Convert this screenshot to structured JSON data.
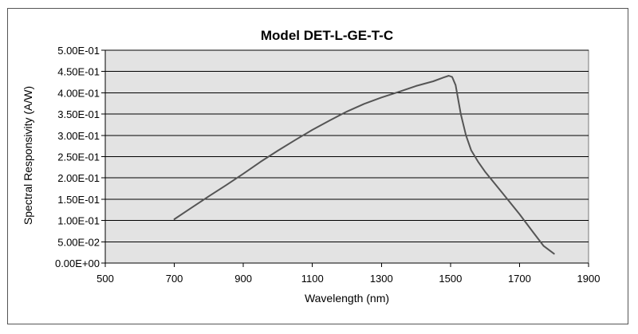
{
  "chart_data": {
    "type": "line",
    "title": "Model DET-L-GE-T-C",
    "xlabel": "Wavelength  (nm)",
    "ylabel": "Spectral Responsivity  (A/W)",
    "xlim": [
      500,
      1900
    ],
    "ylim": [
      0,
      0.5
    ],
    "x_ticks": [
      500,
      700,
      900,
      1100,
      1300,
      1500,
      1700,
      1900
    ],
    "x_tick_labels": [
      "500",
      "700",
      "900",
      "1100",
      "1300",
      "1500",
      "1700",
      "1900"
    ],
    "y_ticks": [
      0,
      0.05,
      0.1,
      0.15,
      0.2,
      0.25,
      0.3,
      0.35,
      0.4,
      0.45,
      0.5
    ],
    "y_tick_labels": [
      "0.00E+00",
      "5.00E-02",
      "1.00E-01",
      "1.50E-01",
      "2.00E-01",
      "2.50E-01",
      "3.00E-01",
      "3.50E-01",
      "4.00E-01",
      "4.50E-01",
      "5.00E-01"
    ],
    "grid": true,
    "legend": false,
    "series": [
      {
        "name": "Spectral Responsivity",
        "color": "#555555",
        "x": [
          700,
          750,
          800,
          850,
          900,
          950,
          1000,
          1050,
          1100,
          1150,
          1200,
          1250,
          1300,
          1350,
          1400,
          1450,
          1480,
          1495,
          1505,
          1515,
          1530,
          1545,
          1560,
          1580,
          1600,
          1650,
          1700,
          1740,
          1770,
          1800
        ],
        "y": [
          0.103,
          0.13,
          0.157,
          0.183,
          0.21,
          0.238,
          0.264,
          0.289,
          0.313,
          0.335,
          0.356,
          0.374,
          0.389,
          0.402,
          0.416,
          0.427,
          0.436,
          0.44,
          0.437,
          0.418,
          0.35,
          0.3,
          0.265,
          0.238,
          0.215,
          0.165,
          0.115,
          0.072,
          0.04,
          0.022
        ]
      }
    ]
  },
  "colors": {
    "plot_background": "#e3e3e3",
    "gridline": "#000000",
    "line": "#555555",
    "frame": "#555555"
  }
}
